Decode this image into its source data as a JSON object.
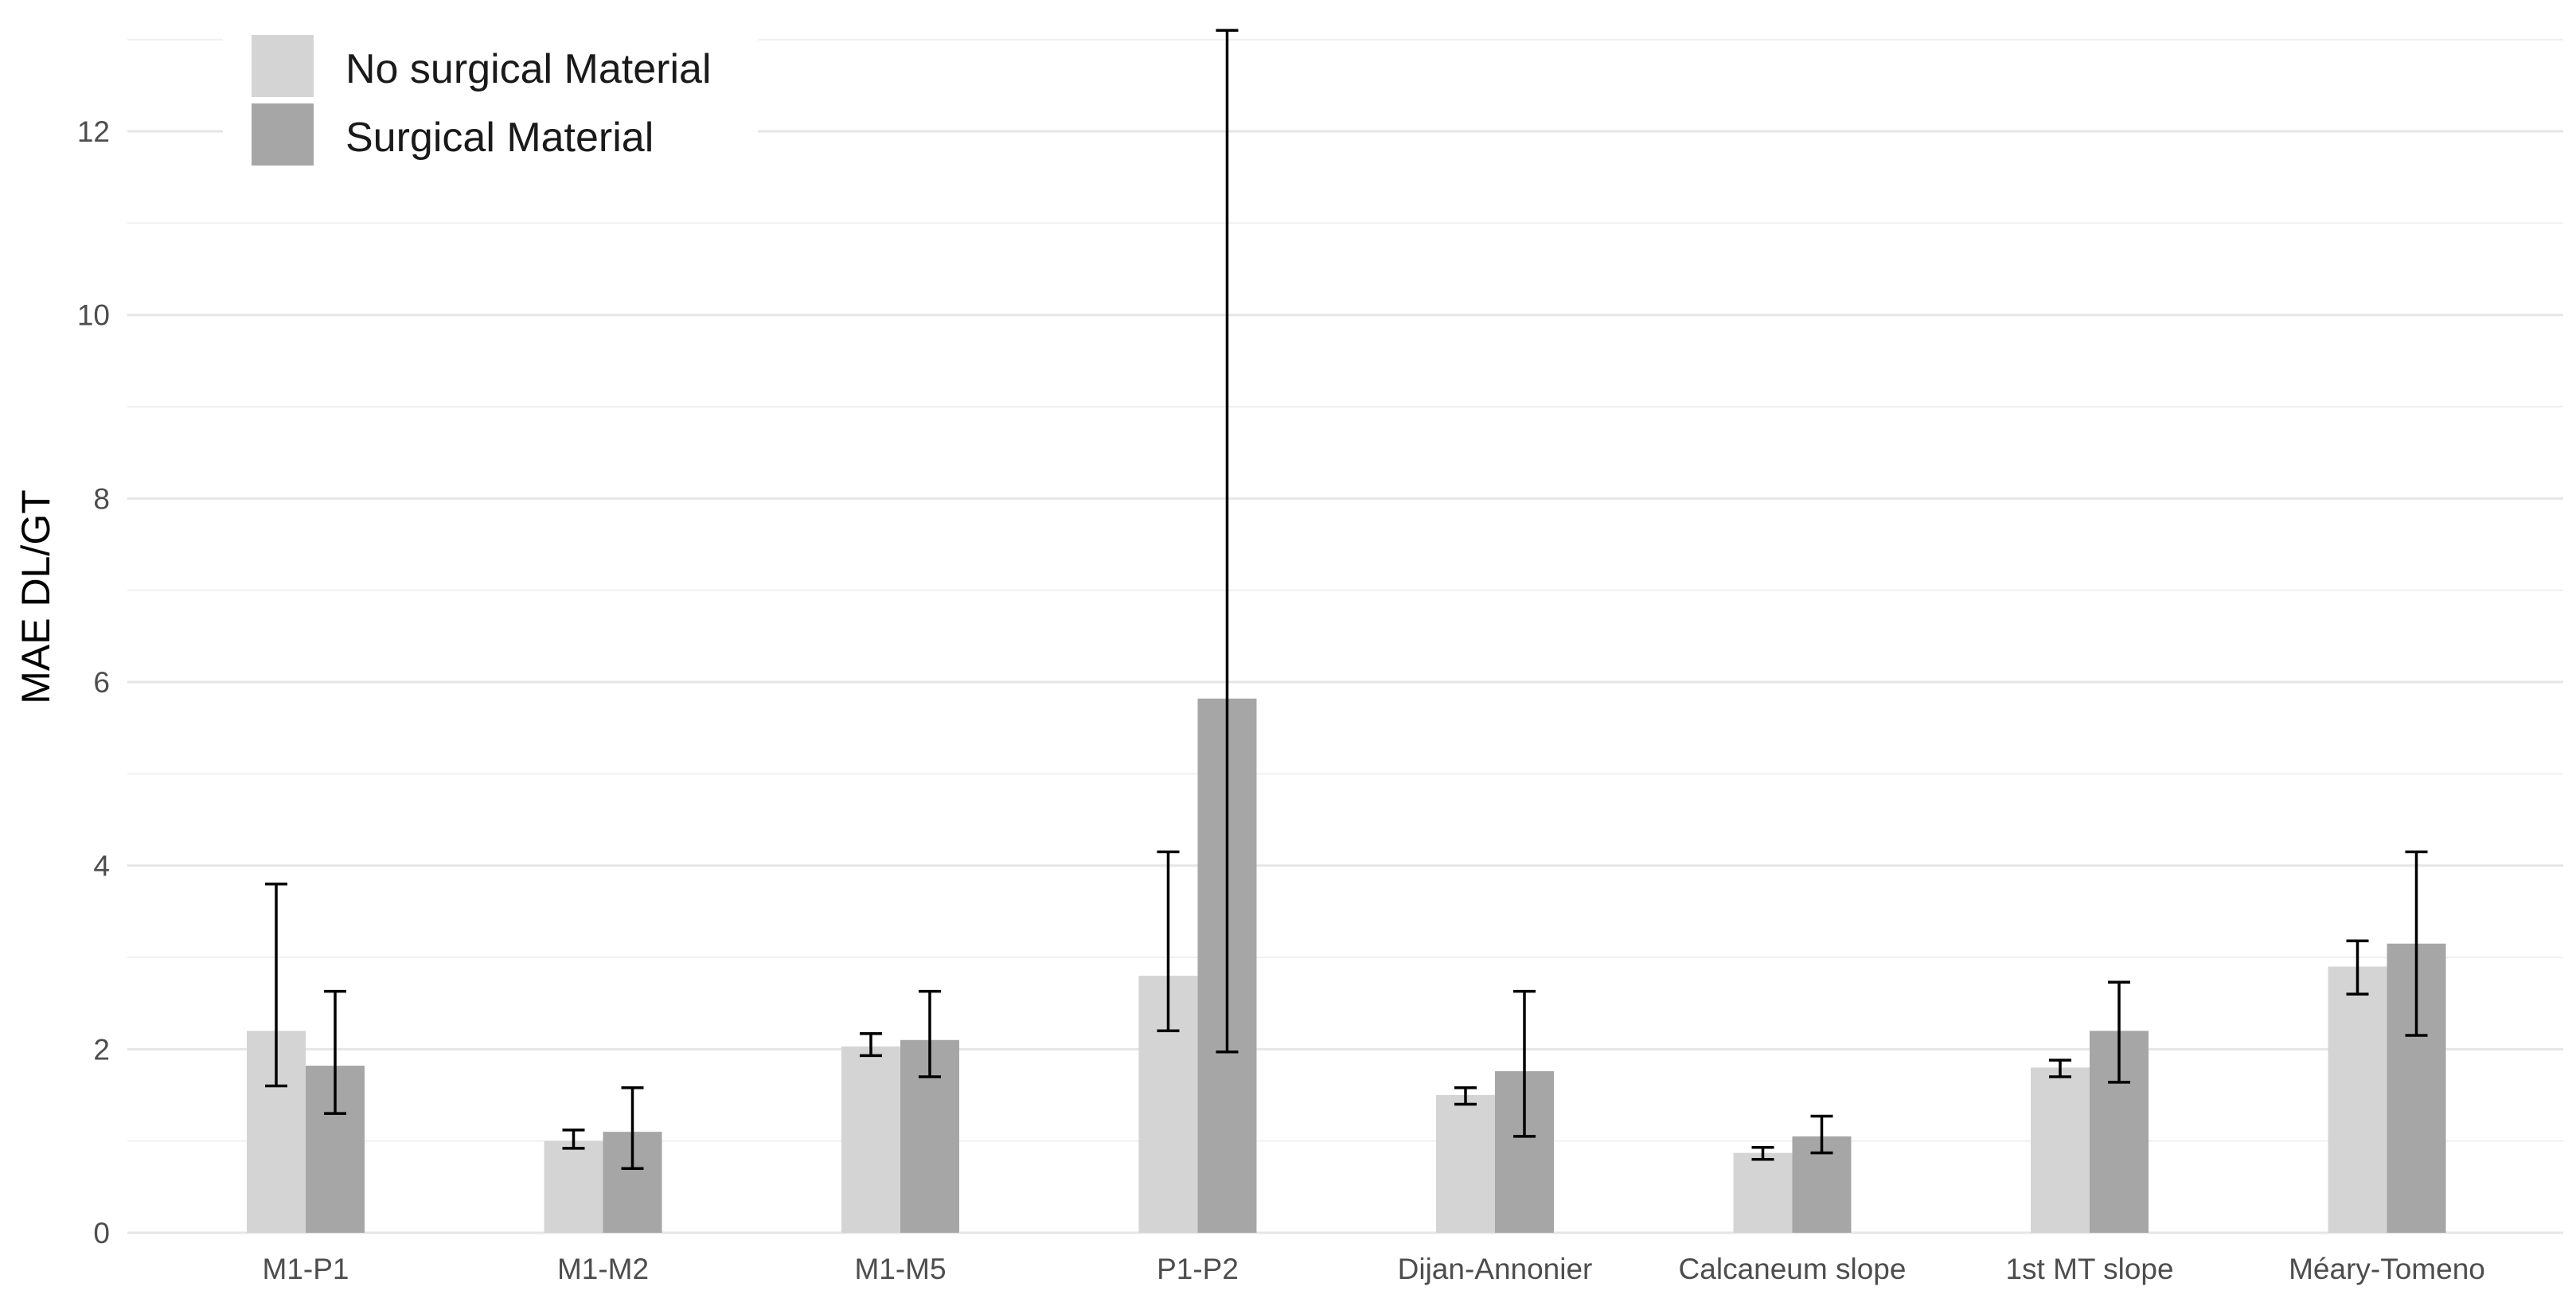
{
  "chart_data": {
    "type": "bar",
    "title": "",
    "xlabel": "",
    "ylabel": "MAE DL/GT",
    "ylim": [
      0,
      13.2
    ],
    "yticks": [
      0,
      2,
      4,
      6,
      8,
      10,
      12
    ],
    "grid": true,
    "legend_position": "top-left",
    "categories": [
      "M1-P1",
      "M1-M2",
      "M1-M5",
      "P1-P2",
      "Dijan-Annonier",
      "Calcaneum slope",
      "1st MT slope",
      "Méary-Tomeno"
    ],
    "series": [
      {
        "name": "No surgical Material",
        "color": "#d4d4d4",
        "values": [
          2.2,
          1.0,
          2.03,
          2.8,
          1.5,
          0.87,
          1.8,
          2.9
        ],
        "error_low": [
          1.6,
          0.92,
          1.93,
          2.2,
          1.4,
          0.8,
          1.7,
          2.6
        ],
        "error_high": [
          3.8,
          1.12,
          2.17,
          4.15,
          1.58,
          0.93,
          1.88,
          3.18
        ]
      },
      {
        "name": "Surgical Material",
        "color": "#a6a6a6",
        "values": [
          1.82,
          1.1,
          2.1,
          5.82,
          1.76,
          1.05,
          2.2,
          3.15
        ],
        "error_low": [
          1.3,
          0.7,
          1.7,
          1.97,
          1.05,
          0.87,
          1.64,
          2.15
        ],
        "error_high": [
          2.63,
          1.58,
          2.63,
          13.1,
          2.63,
          1.27,
          2.73,
          4.15
        ]
      }
    ]
  }
}
